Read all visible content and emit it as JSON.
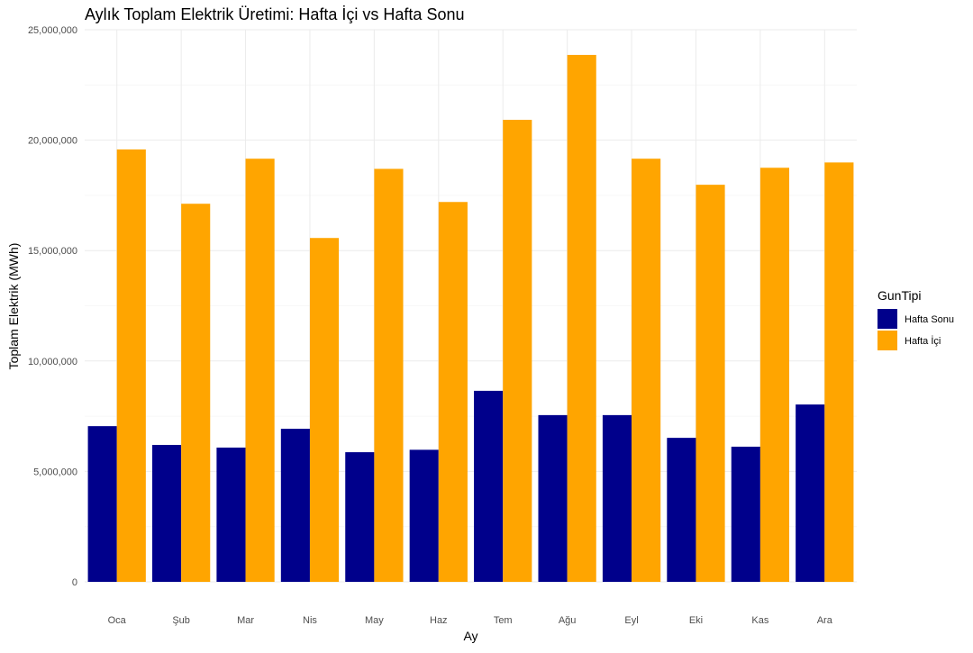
{
  "chart_data": {
    "type": "bar",
    "title": "Aylık Toplam Elektrik Üretimi: Hafta İçi vs Hafta Sonu",
    "xlabel": "Ay",
    "ylabel": "Toplam Elektrik (MWh)",
    "categories": [
      "Oca",
      "Şub",
      "Mar",
      "Nis",
      "May",
      "Haz",
      "Tem",
      "Ağu",
      "Eyl",
      "Eki",
      "Kas",
      "Ara"
    ],
    "series": [
      {
        "name": "Hafta Sonu",
        "color": "#00008B",
        "values": [
          7050000,
          6200000,
          6080000,
          6930000,
          5870000,
          5980000,
          8650000,
          7550000,
          7550000,
          6520000,
          6120000,
          8030000
        ]
      },
      {
        "name": "Hafta İçi",
        "color": "#FFA500",
        "values": [
          19580000,
          17120000,
          19160000,
          15570000,
          18700000,
          17200000,
          20920000,
          23860000,
          19160000,
          17980000,
          18750000,
          18990000
        ]
      }
    ],
    "ylim": [
      0,
      25000000
    ],
    "yticks": [
      0,
      5000000,
      10000000,
      15000000,
      20000000,
      25000000
    ],
    "ytick_labels": [
      "0",
      "5,000,000",
      "10,000,000",
      "15,000,000",
      "20,000,000",
      "25,000,000"
    ],
    "grid": true,
    "legend": {
      "title": "GunTipi",
      "position": "right",
      "entries": [
        "Hafta Sonu",
        "Hafta İçi"
      ]
    }
  }
}
